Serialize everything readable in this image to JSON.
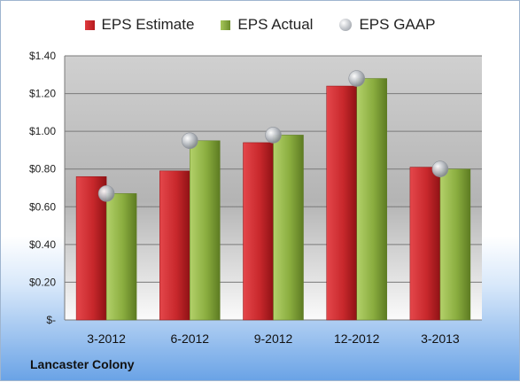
{
  "chart_data": {
    "type": "bar",
    "categories": [
      "3-2012",
      "6-2012",
      "9-2012",
      "12-2012",
      "3-2013"
    ],
    "series": [
      {
        "name": "EPS Estimate",
        "type": "bar",
        "color": "#c8282c",
        "values": [
          0.76,
          0.79,
          0.94,
          1.24,
          0.81
        ]
      },
      {
        "name": "EPS Actual",
        "type": "bar",
        "color": "#8aad3f",
        "values": [
          0.67,
          0.95,
          0.98,
          1.28,
          0.8
        ]
      },
      {
        "name": "EPS GAAP",
        "type": "scatter",
        "color": "#b8bcc2",
        "values": [
          0.67,
          0.95,
          0.98,
          1.28,
          0.8
        ]
      }
    ],
    "ylim": [
      0,
      1.4
    ],
    "yticks": [
      0,
      0.2,
      0.4,
      0.6,
      0.8,
      1.0,
      1.2,
      1.4
    ],
    "ytick_labels": [
      "$-",
      "$0.20",
      "$0.40",
      "$0.60",
      "$0.80",
      "$1.00",
      "$1.20",
      "$1.40"
    ],
    "grid": true,
    "legend_position": "top"
  },
  "legend": {
    "estimate": "EPS Estimate",
    "actual": "EPS Actual",
    "gaap": "EPS GAAP"
  },
  "company_name": "Lancaster Colony"
}
